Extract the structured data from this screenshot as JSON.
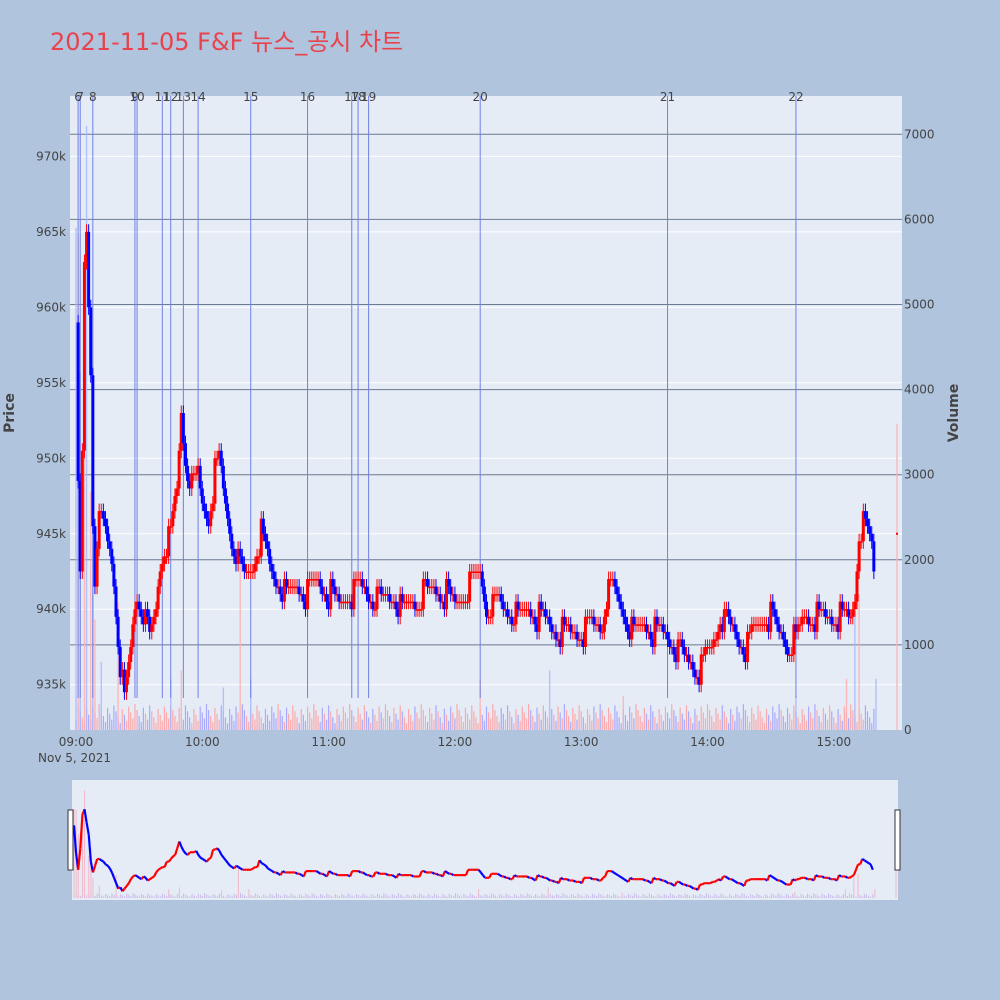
{
  "title": "2021-11-05 F&F 뉴스_공시 차트",
  "chart_data": {
    "type": "candlestick",
    "y_axis_title": "Price",
    "y2_axis_title": "Volume",
    "date_label": "Nov 5, 2021",
    "x_ticks": [
      "09:00",
      "10:00",
      "11:00",
      "12:00",
      "13:00",
      "14:00",
      "15:00"
    ],
    "y_ticks": [
      "935k",
      "940k",
      "945k",
      "950k",
      "955k",
      "960k",
      "965k",
      "970k"
    ],
    "y_tick_values": [
      935000,
      940000,
      945000,
      950000,
      955000,
      960000,
      965000,
      970000
    ],
    "y2_ticks": [
      "0",
      "1000",
      "2000",
      "3000",
      "4000",
      "5000",
      "6000",
      "7000"
    ],
    "y2_tick_values": [
      0,
      1000,
      2000,
      3000,
      4000,
      5000,
      6000,
      7000
    ],
    "x_range": [
      "09:00",
      "15:30"
    ],
    "y_range": [
      932000,
      974000
    ],
    "y2_range": [
      0,
      7450
    ],
    "up_color": "#ff0000",
    "down_color": "#0000ff",
    "news_events": [
      {
        "label": "6",
        "time": "09:01"
      },
      {
        "label": "7",
        "time": "09:02"
      },
      {
        "label": "8",
        "time": "09:08"
      },
      {
        "label": "9",
        "time": "09:28"
      },
      {
        "label": "10",
        "time": "09:29"
      },
      {
        "label": "11",
        "time": "09:41"
      },
      {
        "label": "12",
        "time": "09:45"
      },
      {
        "label": "13",
        "time": "09:51"
      },
      {
        "label": "14",
        "time": "09:58"
      },
      {
        "label": "15",
        "time": "10:23"
      },
      {
        "label": "16",
        "time": "10:50"
      },
      {
        "label": "17",
        "time": "11:11"
      },
      {
        "label": "18",
        "time": "11:14"
      },
      {
        "label": "19",
        "time": "11:19"
      },
      {
        "label": "20",
        "time": "12:12"
      },
      {
        "label": "21",
        "time": "13:41"
      },
      {
        "label": "22",
        "time": "14:42"
      }
    ],
    "price_path": [
      [
        "09:00",
        958000
      ],
      [
        "09:01",
        948000
      ],
      [
        "09:02",
        942000
      ],
      [
        "09:03",
        950000
      ],
      [
        "09:04",
        963000
      ],
      [
        "09:05",
        965000
      ],
      [
        "09:06",
        960000
      ],
      [
        "09:07",
        956000
      ],
      [
        "09:08",
        946000
      ],
      [
        "09:09",
        942000
      ],
      [
        "09:10",
        945000
      ],
      [
        "09:12",
        946000
      ],
      [
        "09:14",
        945000
      ],
      [
        "09:16",
        944000
      ],
      [
        "09:18",
        942000
      ],
      [
        "09:20",
        938000
      ],
      [
        "09:22",
        935000
      ],
      [
        "09:23",
        934000
      ],
      [
        "09:25",
        936000
      ],
      [
        "09:27",
        939000
      ],
      [
        "09:29",
        941000
      ],
      [
        "09:32",
        940000
      ],
      [
        "09:35",
        938000
      ],
      [
        "09:38",
        940000
      ],
      [
        "09:40",
        943000
      ],
      [
        "09:42",
        944000
      ],
      [
        "09:45",
        945000
      ],
      [
        "09:48",
        948000
      ],
      [
        "09:50",
        953000
      ],
      [
        "09:52",
        950000
      ],
      [
        "09:55",
        948000
      ],
      [
        "09:58",
        949000
      ],
      [
        "10:00",
        947000
      ],
      [
        "10:03",
        946000
      ],
      [
        "10:06",
        949000
      ],
      [
        "10:08",
        950000
      ],
      [
        "10:10",
        948000
      ],
      [
        "10:12",
        946000
      ],
      [
        "10:15",
        944000
      ],
      [
        "10:18",
        943000
      ],
      [
        "10:20",
        942000
      ],
      [
        "10:24",
        943000
      ],
      [
        "10:28",
        945000
      ],
      [
        "10:32",
        943000
      ],
      [
        "10:35",
        942000
      ],
      [
        "10:40",
        941000
      ],
      [
        "10:45",
        941500
      ],
      [
        "10:50",
        941000
      ],
      [
        "10:55",
        942000
      ],
      [
        "11:00",
        941000
      ],
      [
        "11:05",
        940500
      ],
      [
        "11:10",
        941000
      ],
      [
        "11:15",
        941500
      ],
      [
        "11:20",
        941000
      ],
      [
        "11:25",
        940500
      ],
      [
        "11:30",
        941000
      ],
      [
        "11:35",
        940000
      ],
      [
        "11:40",
        940500
      ],
      [
        "11:45",
        941000
      ],
      [
        "11:50",
        941500
      ],
      [
        "11:55",
        941000
      ],
      [
        "12:00",
        940500
      ],
      [
        "12:05",
        941000
      ],
      [
        "12:10",
        942000
      ],
      [
        "12:12",
        942500
      ],
      [
        "12:15",
        940000
      ],
      [
        "12:20",
        940500
      ],
      [
        "12:25",
        940000
      ],
      [
        "12:30",
        939500
      ],
      [
        "12:35",
        940000
      ],
      [
        "12:40",
        939500
      ],
      [
        "12:45",
        939000
      ],
      [
        "12:50",
        938500
      ],
      [
        "12:55",
        938500
      ],
      [
        "13:00",
        938500
      ],
      [
        "13:05",
        939000
      ],
      [
        "13:10",
        939000
      ],
      [
        "13:12",
        941000
      ],
      [
        "13:15",
        941500
      ],
      [
        "13:20",
        940000
      ],
      [
        "13:25",
        938500
      ],
      [
        "13:30",
        939000
      ],
      [
        "13:35",
        938500
      ],
      [
        "13:40",
        938500
      ],
      [
        "13:45",
        937500
      ],
      [
        "13:48",
        937000
      ],
      [
        "13:52",
        936500
      ],
      [
        "13:56",
        936000
      ],
      [
        "14:00",
        937000
      ],
      [
        "14:03",
        938000
      ],
      [
        "14:06",
        939500
      ],
      [
        "14:10",
        939000
      ],
      [
        "14:15",
        938000
      ],
      [
        "14:18",
        937500
      ],
      [
        "14:22",
        938500
      ],
      [
        "14:26",
        939500
      ],
      [
        "14:30",
        939500
      ],
      [
        "14:34",
        938500
      ],
      [
        "14:38",
        937500
      ],
      [
        "14:42",
        938000
      ],
      [
        "14:46",
        939500
      ],
      [
        "14:50",
        939500
      ],
      [
        "14:55",
        939500
      ],
      [
        "15:00",
        939500
      ],
      [
        "15:05",
        939500
      ],
      [
        "15:08",
        939500
      ],
      [
        "15:10",
        941000
      ],
      [
        "15:12",
        945000
      ],
      [
        "15:14",
        945500
      ],
      [
        "15:16",
        945000
      ],
      [
        "15:18",
        944500
      ],
      [
        "15:19",
        942500
      ]
    ],
    "close_marker": [
      "15:30",
      945000
    ],
    "volume_spikes": [
      [
        "09:00",
        5900
      ],
      [
        "09:01",
        5800
      ],
      [
        "09:02",
        4200
      ],
      [
        "09:04",
        5500
      ],
      [
        "09:05",
        7100
      ],
      [
        "09:07",
        2800
      ],
      [
        "09:08",
        3200
      ],
      [
        "09:09",
        1300
      ],
      [
        "09:12",
        800
      ],
      [
        "09:20",
        1500
      ],
      [
        "09:45",
        600
      ],
      [
        "09:50",
        700
      ],
      [
        "10:10",
        500
      ],
      [
        "10:18",
        2000
      ],
      [
        "10:23",
        600
      ],
      [
        "12:12",
        600
      ],
      [
        "12:45",
        700
      ],
      [
        "13:20",
        400
      ],
      [
        "14:42",
        400
      ],
      [
        "15:06",
        600
      ],
      [
        "15:10",
        1400
      ],
      [
        "15:12",
        1600
      ],
      [
        "15:20",
        600
      ],
      [
        "15:30",
        3600
      ]
    ]
  }
}
